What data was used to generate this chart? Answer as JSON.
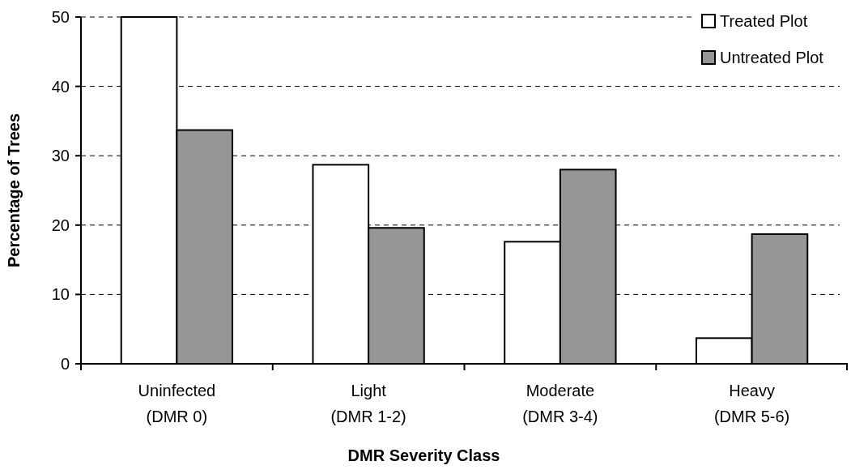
{
  "chart_data": {
    "type": "bar",
    "xlabel": "DMR Severity Class",
    "ylabel": "Percentage of Trees",
    "categories": [
      "Uninfected\n(DMR 0)",
      "Light\n(DMR 1-2)",
      "Moderate\n(DMR 3-4)",
      "Heavy\n(DMR 5-6)"
    ],
    "series": [
      {
        "name": "Treated Plot",
        "color": "#ffffff",
        "values": [
          50,
          28.7,
          17.6,
          3.7
        ]
      },
      {
        "name": "Untreated Plot",
        "color": "#969696",
        "values": [
          33.7,
          19.6,
          28.0,
          18.7
        ]
      }
    ],
    "ylim": [
      0,
      50
    ],
    "yticks": [
      0,
      10,
      20,
      30,
      40,
      50
    ],
    "grid": "y",
    "legend": "top right"
  }
}
